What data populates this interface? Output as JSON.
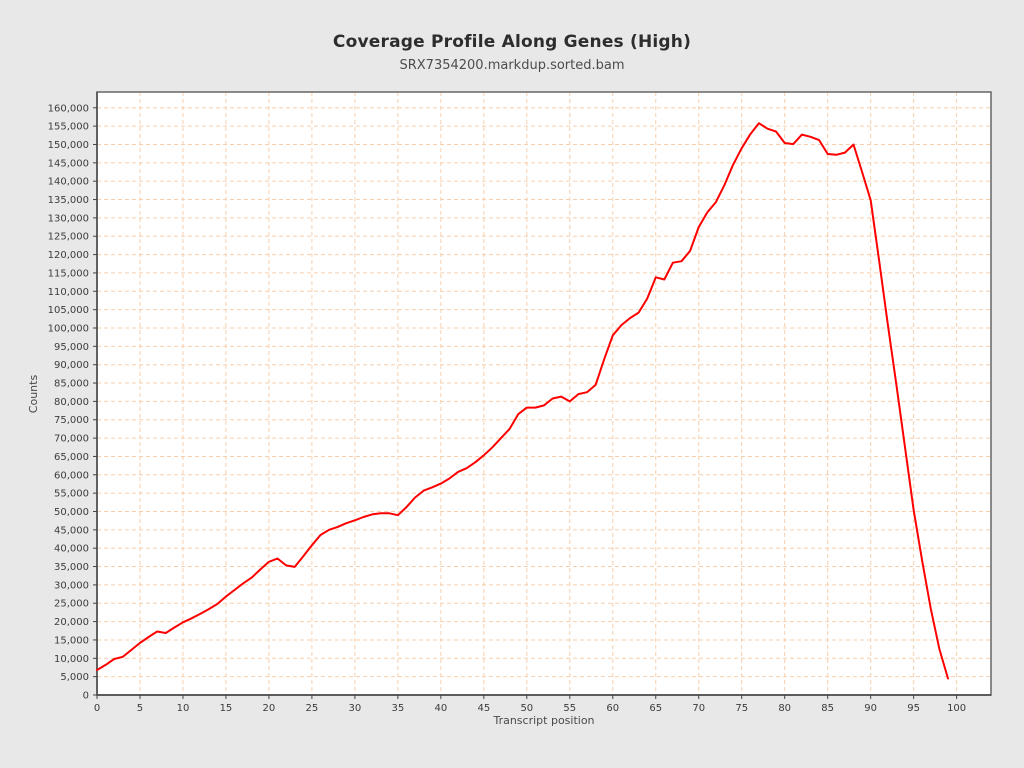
{
  "header": {
    "title": "Coverage Profile Along Genes (High)",
    "subtitle": "SRX7354200.markdup.sorted.bam"
  },
  "chart_data": {
    "type": "line",
    "title": "Coverage Profile Along Genes (High)",
    "subtitle": "SRX7354200.markdup.sorted.bam",
    "xlabel": "Transcript position",
    "ylabel": "Counts",
    "xlim": [
      0,
      104
    ],
    "ylim": [
      0,
      164300
    ],
    "x_ticks": [
      0,
      5,
      10,
      15,
      20,
      25,
      30,
      35,
      40,
      45,
      50,
      55,
      60,
      65,
      70,
      75,
      80,
      85,
      90,
      95,
      100
    ],
    "y_ticks": [
      0,
      5000,
      10000,
      15000,
      20000,
      25000,
      30000,
      35000,
      40000,
      45000,
      50000,
      55000,
      60000,
      65000,
      70000,
      75000,
      80000,
      85000,
      90000,
      95000,
      100000,
      105000,
      110000,
      115000,
      120000,
      125000,
      130000,
      135000,
      140000,
      145000,
      150000,
      155000,
      160000
    ],
    "grid": "dashed",
    "legend": "none",
    "colors": {
      "line": "#ff0000",
      "grid": "#f7cfac",
      "plot_bg": "#ffffff",
      "page_bg": "#e8e8e8",
      "frame": "#6e6e6e",
      "axis": "#454545",
      "tick_text": "#3d3d3d"
    },
    "series": [
      {
        "name": "coverage",
        "x": [
          0,
          1,
          2,
          3,
          4,
          5,
          6,
          7,
          8,
          9,
          10,
          11,
          12,
          13,
          14,
          15,
          16,
          17,
          18,
          19,
          20,
          21,
          22,
          23,
          24,
          25,
          26,
          27,
          28,
          29,
          30,
          31,
          32,
          33,
          34,
          35,
          36,
          37,
          38,
          39,
          40,
          41,
          42,
          43,
          44,
          45,
          46,
          47,
          48,
          49,
          50,
          51,
          52,
          53,
          54,
          55,
          56,
          57,
          58,
          59,
          60,
          61,
          62,
          63,
          64,
          65,
          66,
          67,
          68,
          69,
          70,
          71,
          72,
          73,
          74,
          75,
          76,
          77,
          78,
          79,
          80,
          81,
          82,
          83,
          84,
          85,
          86,
          87,
          88,
          89,
          90,
          91,
          92,
          93,
          94,
          95,
          96,
          97,
          98,
          99
        ],
        "values": [
          6800,
          8200,
          9800,
          10400,
          12300,
          14200,
          15800,
          17300,
          16900,
          18400,
          19800,
          20900,
          22100,
          23400,
          24800,
          26800,
          28600,
          30400,
          32000,
          34200,
          36300,
          37200,
          35300,
          34900,
          37800,
          40800,
          43600,
          45000,
          45800,
          46800,
          47600,
          48500,
          49200,
          49500,
          49500,
          49000,
          51200,
          53800,
          55700,
          56600,
          57600,
          59000,
          60800,
          61800,
          63400,
          65300,
          67500,
          70000,
          72500,
          76500,
          78300,
          78300,
          78900,
          80800,
          81300,
          80000,
          82000,
          82500,
          84500,
          91500,
          98000,
          100800,
          102700,
          104200,
          108000,
          113800,
          113200,
          117800,
          118200,
          121000,
          127500,
          131500,
          134300,
          139000,
          144500,
          149000,
          152800,
          155800,
          154300,
          153500,
          150400,
          150100,
          152700,
          152100,
          151200,
          147400,
          147200,
          147800,
          150000,
          142500,
          134800,
          118000,
          101000,
          84500,
          67500,
          50500,
          36500,
          23500,
          12500,
          4500
        ]
      }
    ]
  }
}
